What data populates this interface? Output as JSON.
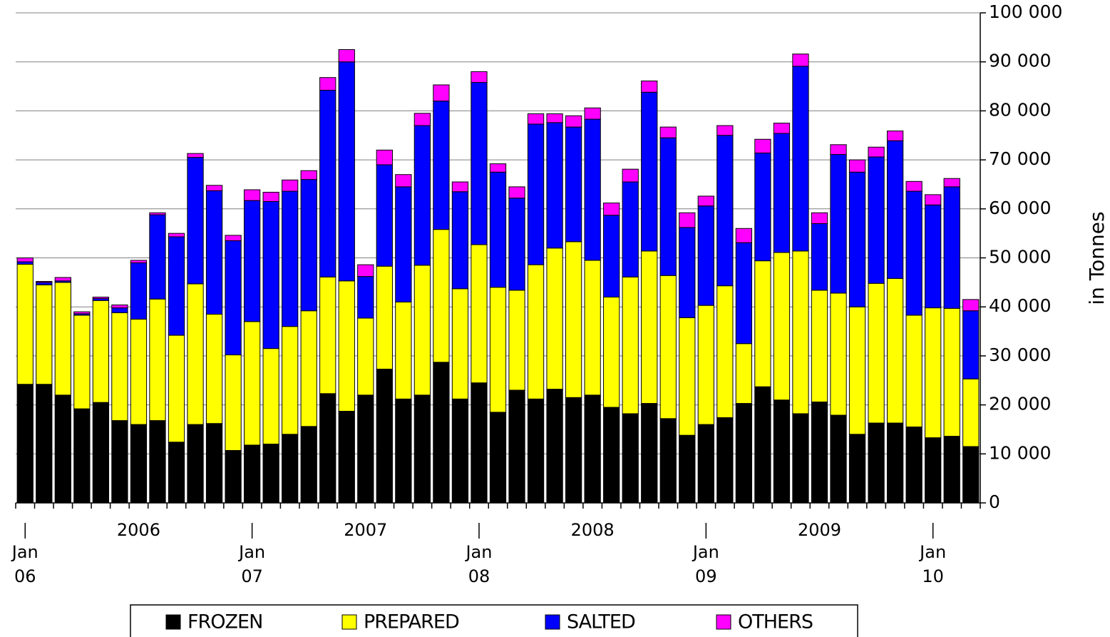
{
  "chart_data": {
    "type": "stacked-bar",
    "y_axis_label": "in Tonnes",
    "categories": [
      [
        "Jan",
        "06"
      ],
      null,
      null,
      null,
      null,
      null,
      null,
      null,
      null,
      null,
      null,
      null,
      [
        "Jan",
        "07"
      ],
      null,
      null,
      null,
      null,
      null,
      null,
      null,
      null,
      null,
      null,
      null,
      [
        "Jan",
        "08"
      ],
      null,
      null,
      null,
      null,
      null,
      null,
      null,
      null,
      null,
      null,
      null,
      [
        "Jan",
        "09"
      ],
      null,
      null,
      null,
      null,
      null,
      null,
      null,
      null,
      null,
      null,
      null,
      [
        "Jan",
        "10"
      ],
      null,
      null
    ],
    "category_groups": [
      null,
      null,
      null,
      null,
      null,
      null,
      "2006",
      null,
      null,
      null,
      null,
      null,
      null,
      null,
      null,
      null,
      null,
      null,
      "2007",
      null,
      null,
      null,
      null,
      null,
      null,
      null,
      null,
      null,
      null,
      null,
      "2008",
      null,
      null,
      null,
      null,
      null,
      null,
      null,
      null,
      null,
      null,
      null,
      "2009",
      null,
      null,
      null,
      null,
      null,
      null,
      null,
      null
    ],
    "series": [
      {
        "name": "FROZEN",
        "color": "#000000",
        "values": [
          24200,
          24200,
          22000,
          19200,
          20500,
          16800,
          16000,
          16800,
          12400,
          16000,
          16200,
          10700,
          11800,
          12000,
          14000,
          15600,
          22300,
          18700,
          22000,
          27300,
          21200,
          22000,
          28700,
          21200,
          24500,
          18500,
          23000,
          21200,
          23200,
          21500,
          22000,
          19500,
          18200,
          20300,
          17200,
          13800,
          16000,
          17400,
          20300,
          23700,
          21000,
          18200,
          20600,
          17900,
          14000,
          16300,
          16300,
          15500,
          13300,
          13600,
          11500
        ]
      },
      {
        "name": "PREPARED",
        "color": "#ffff00",
        "values": [
          24500,
          20300,
          23000,
          19100,
          20800,
          22000,
          21500,
          24800,
          21800,
          28700,
          22300,
          19500,
          25200,
          19500,
          22000,
          23600,
          23800,
          26600,
          15700,
          21000,
          19800,
          26500,
          27100,
          22500,
          28200,
          25500,
          20400,
          27400,
          28800,
          31800,
          27500,
          22500,
          27900,
          31100,
          29200,
          24000,
          24300,
          26900,
          12200,
          25700,
          30100,
          33200,
          22800,
          24900,
          26000,
          28500,
          29500,
          22800,
          26500,
          26100,
          13800
        ]
      },
      {
        "name": "SALTED",
        "color": "#0000ff",
        "values": [
          500,
          500,
          300,
          300,
          400,
          1000,
          11500,
          17200,
          20100,
          25800,
          25200,
          23300,
          24700,
          30000,
          27600,
          26800,
          38100,
          44700,
          8500,
          20700,
          23500,
          28500,
          26200,
          19800,
          33100,
          23500,
          18800,
          28700,
          25600,
          23400,
          28800,
          16700,
          19400,
          32400,
          28100,
          18400,
          20300,
          30700,
          20600,
          22000,
          24300,
          37700,
          13600,
          28300,
          27500,
          25800,
          28100,
          25300,
          21000,
          24800,
          13900
        ]
      },
      {
        "name": "OTHERS",
        "color": "#ff00ff",
        "values": [
          800,
          200,
          700,
          400,
          300,
          600,
          500,
          400,
          700,
          800,
          1100,
          1100,
          2200,
          1900,
          2300,
          1800,
          2600,
          2500,
          2400,
          3000,
          2500,
          2500,
          3300,
          2000,
          2200,
          1700,
          2300,
          2100,
          1800,
          2300,
          2300,
          2500,
          2600,
          2300,
          2200,
          3000,
          2000,
          2000,
          2900,
          2800,
          2100,
          2500,
          2200,
          2000,
          2500,
          2000,
          2000,
          2000,
          2100,
          1700,
          2300
        ]
      }
    ],
    "ylim": [
      0,
      100000
    ],
    "yticks": [
      0,
      {
        "value": 10000,
        "label": "10 000"
      },
      {
        "value": 20000,
        "label": "20 000"
      },
      {
        "value": 30000,
        "label": "30 000"
      },
      {
        "value": 40000,
        "label": "40 000"
      },
      {
        "value": 50000,
        "label": "50 000"
      },
      {
        "value": 60000,
        "label": "60 000"
      },
      {
        "value": 70000,
        "label": "70 000"
      },
      {
        "value": 80000,
        "label": "80 000"
      },
      {
        "value": 90000,
        "label": "90 000"
      },
      {
        "value": 100000,
        "label": "100 000"
      }
    ],
    "grid": true,
    "legend": "bottom"
  }
}
